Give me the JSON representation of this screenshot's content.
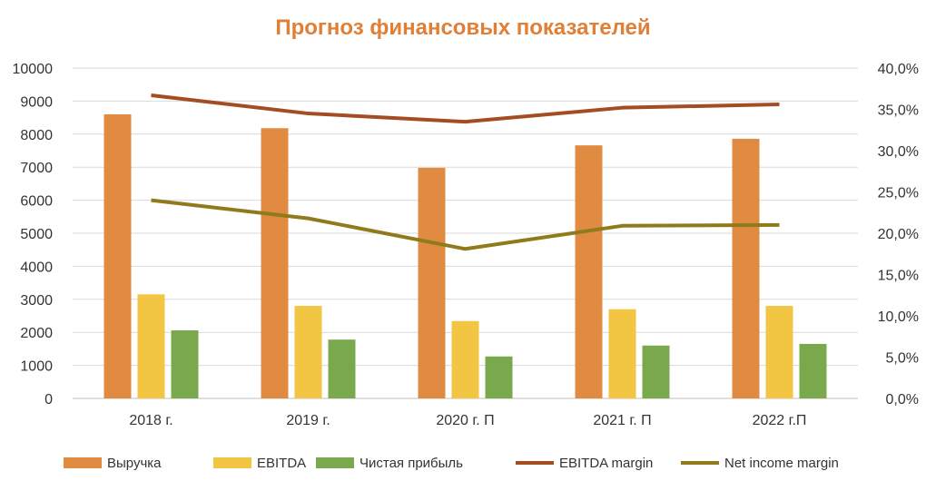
{
  "chart_data": {
    "type": "bar",
    "title": "Прогноз финансовых показателей",
    "categories": [
      "2018 г.",
      "2019 г.",
      "2020 г. П",
      "2021 г. П",
      "2022 г.П"
    ],
    "y_left": {
      "min": 0,
      "max": 10000,
      "step": 1000,
      "ticks": [
        "0",
        "1000",
        "2000",
        "3000",
        "4000",
        "5000",
        "6000",
        "7000",
        "8000",
        "9000",
        "10000"
      ]
    },
    "y_right": {
      "min": 0,
      "max": 40,
      "step": 5,
      "ticks": [
        "0,0%",
        "5,0%",
        "10,0%",
        "15,0%",
        "20,0%",
        "25,0%",
        "30,0%",
        "35,0%",
        "40,0%"
      ]
    },
    "grid": true,
    "legend_position": "bottom",
    "bar_series": [
      {
        "name": "Выручка",
        "color": "#e08a42",
        "values": [
          8600,
          8180,
          6980,
          7660,
          7860
        ]
      },
      {
        "name": "EBITDA",
        "color": "#f2c542",
        "values": [
          3150,
          2800,
          2340,
          2700,
          2800
        ]
      },
      {
        "name": "Чистая прибыль",
        "color": "#79a84d",
        "values": [
          2060,
          1780,
          1270,
          1600,
          1650
        ]
      }
    ],
    "line_series": [
      {
        "name": "EBITDA margin",
        "color": "#a54d22",
        "axis": "right",
        "values": [
          36.7,
          34.5,
          33.5,
          35.2,
          35.6
        ]
      },
      {
        "name": "Net income margin",
        "color": "#8f7a1c",
        "axis": "right",
        "values": [
          24.0,
          21.8,
          18.1,
          20.9,
          21.0
        ]
      }
    ]
  }
}
